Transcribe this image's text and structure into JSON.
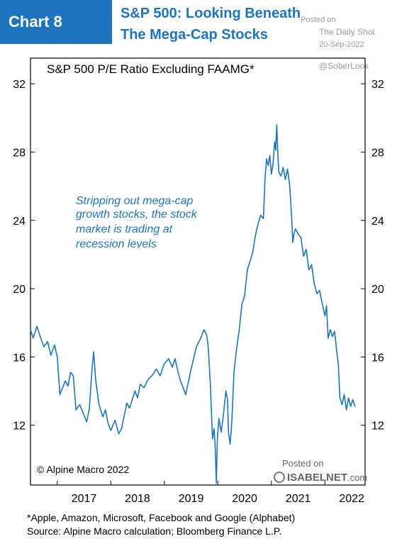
{
  "header": {
    "badge": "Chart 8",
    "title_line1": "S&P 500: Looking Beneath",
    "title_line2": "The Mega-Cap Stocks",
    "posted_on": "Posted on",
    "daily_shot": "The Daily Shot",
    "date": "20-Sep-2022",
    "handle": "@SoberLook"
  },
  "watermark": {
    "posted_on": "Posted on",
    "brand": "ISABELNET",
    "suffix": ".com"
  },
  "copyright": "© Alpine Macro 2022",
  "footnote": {
    "line1": "*Apple, Amazon, Microsoft, Facebook and Google (Alphabet)",
    "line2": "Source: Alpine Macro calculation; Bloomberg Finance L.P."
  },
  "colors": {
    "accent": "#1f74bf",
    "line": "#1f74bf"
  },
  "chart_data": {
    "type": "line",
    "title": "S&P 500 P/E Ratio Excluding FAAMG*",
    "annotation": [
      "Stripping out mega-cap",
      "growth stocks, the stock",
      "market is trading at",
      "recession levels"
    ],
    "xlabel": "",
    "ylabel": "",
    "x_ticks": [
      "2017",
      "2018",
      "2019",
      "2020",
      "2021",
      "2022"
    ],
    "y_ticks": [
      12,
      16,
      20,
      24,
      28,
      32
    ],
    "xlim": [
      2016.5,
      2022.75
    ],
    "ylim": [
      8.5,
      33.5
    ],
    "grid": false,
    "series": [
      {
        "values": [
          [
            2016.5,
            17.6
          ],
          [
            2016.55,
            17.1
          ],
          [
            2016.62,
            17.8
          ],
          [
            2016.68,
            17.2
          ],
          [
            2016.75,
            16.6
          ],
          [
            2016.82,
            16.9
          ],
          [
            2016.88,
            16.1
          ],
          [
            2016.95,
            16.7
          ],
          [
            2017.0,
            16.0
          ],
          [
            2017.05,
            13.8
          ],
          [
            2017.1,
            14.2
          ],
          [
            2017.15,
            14.6
          ],
          [
            2017.2,
            14.3
          ],
          [
            2017.25,
            15.1
          ],
          [
            2017.3,
            14.9
          ],
          [
            2017.35,
            12.9
          ],
          [
            2017.42,
            13.2
          ],
          [
            2017.5,
            12.6
          ],
          [
            2017.55,
            12.2
          ],
          [
            2017.6,
            13.0
          ],
          [
            2017.65,
            15.3
          ],
          [
            2017.68,
            16.3
          ],
          [
            2017.72,
            14.6
          ],
          [
            2017.78,
            13.2
          ],
          [
            2017.85,
            12.5
          ],
          [
            2017.9,
            12.9
          ],
          [
            2017.95,
            12.1
          ],
          [
            2018.0,
            11.7
          ],
          [
            2018.08,
            12.3
          ],
          [
            2018.15,
            11.5
          ],
          [
            2018.2,
            11.8
          ],
          [
            2018.3,
            13.3
          ],
          [
            2018.35,
            13.0
          ],
          [
            2018.45,
            14.0
          ],
          [
            2018.5,
            13.6
          ],
          [
            2018.55,
            14.4
          ],
          [
            2018.62,
            14.2
          ],
          [
            2018.7,
            14.7
          ],
          [
            2018.77,
            14.9
          ],
          [
            2018.85,
            15.3
          ],
          [
            2018.92,
            14.9
          ],
          [
            2019.0,
            15.6
          ],
          [
            2019.08,
            15.9
          ],
          [
            2019.15,
            15.4
          ],
          [
            2019.2,
            15.9
          ],
          [
            2019.25,
            15.2
          ],
          [
            2019.3,
            14.6
          ],
          [
            2019.4,
            13.8
          ],
          [
            2019.5,
            15.3
          ],
          [
            2019.6,
            16.6
          ],
          [
            2019.68,
            17.1
          ],
          [
            2019.74,
            17.6
          ],
          [
            2019.79,
            17.3
          ],
          [
            2019.82,
            16.6
          ],
          [
            2019.86,
            14.4
          ],
          [
            2019.9,
            11.2
          ],
          [
            2019.93,
            11.8
          ],
          [
            2019.95,
            10.8
          ],
          [
            2019.97,
            8.6
          ],
          [
            2019.99,
            11.2
          ],
          [
            2020.02,
            12.4
          ],
          [
            2020.06,
            11.6
          ],
          [
            2020.1,
            12.5
          ],
          [
            2020.15,
            14.0
          ],
          [
            2020.18,
            13.5
          ],
          [
            2020.2,
            11.5
          ],
          [
            2020.23,
            10.9
          ],
          [
            2020.26,
            12.2
          ],
          [
            2020.3,
            15.1
          ],
          [
            2020.35,
            16.5
          ],
          [
            2020.4,
            17.6
          ],
          [
            2020.45,
            19.1
          ],
          [
            2020.5,
            19.6
          ],
          [
            2020.55,
            21.1
          ],
          [
            2020.6,
            21.6
          ],
          [
            2020.65,
            22.1
          ],
          [
            2020.7,
            23.1
          ],
          [
            2020.75,
            23.8
          ],
          [
            2020.8,
            24.3
          ],
          [
            2020.85,
            24.1
          ],
          [
            2020.88,
            26.4
          ],
          [
            2020.91,
            27.6
          ],
          [
            2020.94,
            27.2
          ],
          [
            2020.97,
            27.8
          ],
          [
            2021.0,
            26.7
          ],
          [
            2021.03,
            27.3
          ],
          [
            2021.06,
            28.6
          ],
          [
            2021.08,
            28.1
          ],
          [
            2021.1,
            29.6
          ],
          [
            2021.12,
            27.9
          ],
          [
            2021.14,
            26.8
          ],
          [
            2021.18,
            26.6
          ],
          [
            2021.22,
            27.1
          ],
          [
            2021.26,
            26.4
          ],
          [
            2021.3,
            27.0
          ],
          [
            2021.34,
            26.1
          ],
          [
            2021.38,
            24.1
          ],
          [
            2021.4,
            22.7
          ],
          [
            2021.42,
            23.2
          ],
          [
            2021.45,
            23.5
          ],
          [
            2021.5,
            23.2
          ],
          [
            2021.55,
            23.0
          ],
          [
            2021.6,
            21.9
          ],
          [
            2021.65,
            22.3
          ],
          [
            2021.7,
            21.1
          ],
          [
            2021.75,
            21.4
          ],
          [
            2021.8,
            20.3
          ],
          [
            2021.85,
            19.7
          ],
          [
            2021.9,
            19.9
          ],
          [
            2021.95,
            19.1
          ],
          [
            2022.0,
            18.4
          ],
          [
            2022.03,
            19.0
          ],
          [
            2022.06,
            17.1
          ],
          [
            2022.1,
            17.6
          ],
          [
            2022.14,
            17.2
          ],
          [
            2022.18,
            17.5
          ],
          [
            2022.22,
            16.3
          ],
          [
            2022.25,
            15.6
          ],
          [
            2022.28,
            13.6
          ],
          [
            2022.32,
            13.2
          ],
          [
            2022.36,
            13.8
          ],
          [
            2022.4,
            12.9
          ],
          [
            2022.44,
            13.6
          ],
          [
            2022.48,
            13.1
          ],
          [
            2022.52,
            13.5
          ],
          [
            2022.56,
            13.1
          ]
        ]
      }
    ]
  }
}
